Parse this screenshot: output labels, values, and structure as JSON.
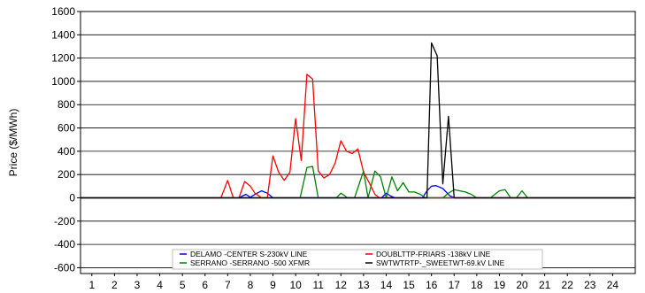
{
  "chart_data": {
    "type": "line",
    "title": "",
    "xlabel": "",
    "ylabel": "Price ($/MWh)",
    "xlim": [
      0.5,
      25
    ],
    "ylim": [
      -650,
      1600
    ],
    "x_ticks": [
      "1",
      "2",
      "3",
      "4",
      "5",
      "6",
      "7",
      "8",
      "9",
      "10",
      "11",
      "12",
      "13",
      "14",
      "15",
      "16",
      "17",
      "18",
      "19",
      "20",
      "21",
      "22",
      "23",
      "24"
    ],
    "y_ticks": [
      1600,
      1400,
      1200,
      1000,
      800,
      600,
      400,
      200,
      0,
      -200,
      -400,
      -600
    ],
    "grid": "horizontal",
    "legend_position": "bottom-center",
    "baseline": {
      "value": 0,
      "color": "#000000"
    },
    "series": [
      {
        "name": "DELAMO -CENTER S-230kV LINE",
        "color": "#0000ff",
        "x": [
          0.5,
          7.5,
          7.8,
          8.0,
          8.25,
          8.5,
          8.75,
          9.0,
          13.8,
          14.0,
          14.2,
          14.4,
          15.6,
          15.8,
          16.0,
          16.2,
          16.5,
          16.8,
          17.0,
          24.8
        ],
        "y": [
          0,
          0,
          30,
          5,
          35,
          60,
          40,
          0,
          0,
          40,
          15,
          0,
          0,
          60,
          100,
          105,
          80,
          20,
          0,
          0
        ]
      },
      {
        "name": "DOUBLTTP-FRIARS -138kV LINE",
        "color": "#ff0000",
        "x": [
          0.5,
          6.7,
          7.0,
          7.25,
          7.5,
          7.75,
          8.0,
          8.2,
          8.5,
          8.75,
          9.0,
          9.25,
          9.5,
          9.75,
          10.0,
          10.25,
          10.5,
          10.75,
          11.0,
          11.25,
          11.5,
          11.75,
          12.0,
          12.25,
          12.5,
          12.75,
          13.0,
          13.25,
          13.5,
          13.7,
          24.8
        ],
        "y": [
          0,
          0,
          150,
          0,
          0,
          140,
          100,
          40,
          0,
          0,
          360,
          220,
          150,
          220,
          680,
          320,
          1060,
          1020,
          230,
          170,
          200,
          300,
          490,
          400,
          380,
          420,
          220,
          130,
          30,
          0,
          0
        ]
      },
      {
        "name": "SERRANO -SERRANO -500 XFMR",
        "color": "#008000",
        "x": [
          0.5,
          10.2,
          10.5,
          10.75,
          11.0,
          11.5,
          11.8,
          12.0,
          12.3,
          12.6,
          13.0,
          13.2,
          13.5,
          13.75,
          14.0,
          14.25,
          14.5,
          14.75,
          15.0,
          15.25,
          15.5,
          15.75,
          16.0,
          16.25,
          16.5,
          16.75,
          17.0,
          17.25,
          17.5,
          17.75,
          18.0,
          18.2,
          18.6,
          19.0,
          19.25,
          19.5,
          19.75,
          20.0,
          20.25,
          24.8
        ],
        "y": [
          0,
          0,
          260,
          270,
          0,
          0,
          0,
          40,
          0,
          0,
          230,
          0,
          230,
          180,
          0,
          180,
          60,
          130,
          50,
          50,
          30,
          0,
          0,
          0,
          0,
          40,
          70,
          60,
          50,
          30,
          0,
          0,
          0,
          60,
          70,
          0,
          0,
          60,
          0,
          0
        ]
      },
      {
        "name": "SWTWTRTP-_SWEETWT-69.kV LINE",
        "color": "#000000",
        "x": [
          0.5,
          15.8,
          16.0,
          16.25,
          16.5,
          16.75,
          17.0,
          24.8
        ],
        "y": [
          0,
          0,
          1330,
          1220,
          120,
          700,
          0,
          0
        ]
      }
    ]
  }
}
